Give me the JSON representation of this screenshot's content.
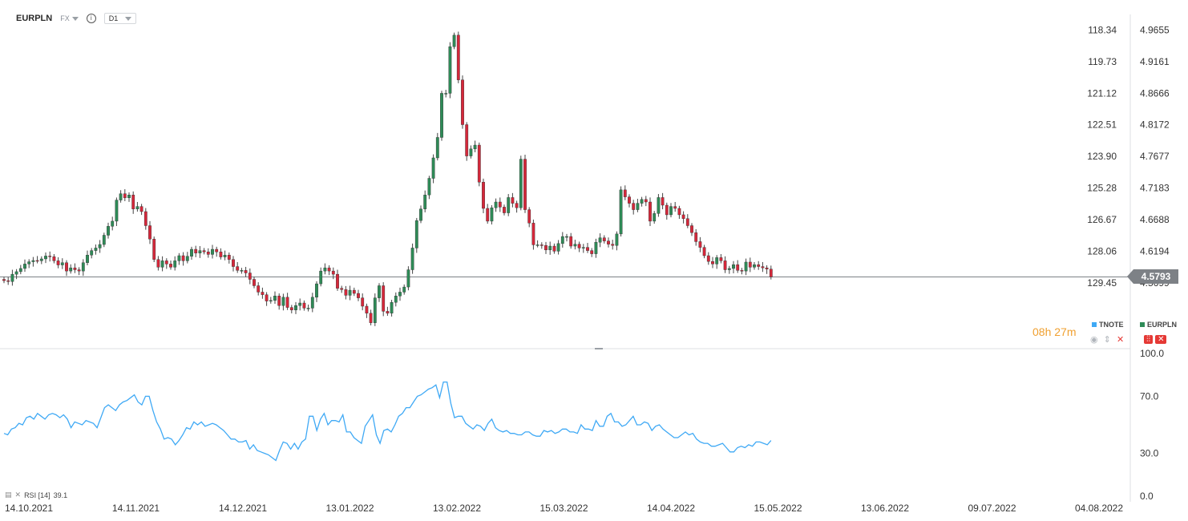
{
  "header": {
    "symbol": "EURPLN",
    "exchange": "FX",
    "timeframe": "D1"
  },
  "timer": "08h 27m",
  "legend": {
    "items": [
      {
        "label": "TNOTE",
        "color": "#3fa9f5"
      },
      {
        "label": "EURPLN",
        "color": "#2e8b57"
      }
    ]
  },
  "rsi_label": "RSI [14]",
  "rsi_value": "39.1",
  "last_price_label": "4.5793",
  "chart_data": [
    {
      "type": "candlestick",
      "title": "EURPLN",
      "current_price": 4.5793,
      "right_axis_ticks": [
        "4.9655",
        "4.9161",
        "4.8666",
        "4.8172",
        "4.7677",
        "4.7183",
        "4.6688",
        "4.6194",
        "4.5699"
      ],
      "left_axis_ticks": [
        "118.34",
        "119.73",
        "121.12",
        "122.51",
        "123.90",
        "125.28",
        "126.67",
        "128.06",
        "129.45"
      ],
      "ylim": [
        4.4708,
        5.0125
      ],
      "x_tick_labels": [
        "14.10.2021",
        "14.11.2021",
        "14.12.2021",
        "13.01.2022",
        "13.02.2022",
        "15.03.2022",
        "14.04.2022",
        "15.05.2022",
        "13.06.2022",
        "09.07.2022",
        "04.08.2022"
      ],
      "series": [
        {
          "name": "EURPLN",
          "up_color": "#2e8b57",
          "down_color": "#d6273a",
          "close": [
            4.5735,
            4.572,
            4.5835,
            4.5875,
            4.5925,
            4.5995,
            4.603,
            4.605,
            4.6045,
            4.6075,
            4.612,
            4.611,
            4.6045,
            4.598,
            4.6015,
            4.5885,
            4.5935,
            4.5905,
            4.5885,
            4.6015,
            4.6135,
            4.6205,
            4.6245,
            4.63,
            4.6445,
            4.6585,
            4.6665,
            4.6995,
            4.7095,
            4.703,
            4.7075,
            4.6855,
            4.6895,
            4.6815,
            4.6595,
            4.6385,
            4.6065,
            4.5945,
            4.6045,
            4.5995,
            4.5945,
            4.6045,
            4.6125,
            4.6045,
            4.6115,
            4.6225,
            4.6165,
            4.6205,
            4.6185,
            4.6145,
            4.6225,
            4.6185,
            4.6105,
            4.6135,
            4.6065,
            4.5955,
            4.5895,
            4.5895,
            4.5855,
            4.5755,
            4.5655,
            4.5555,
            4.5515,
            4.5415,
            4.5425,
            4.5495,
            4.5345,
            4.5475,
            4.5315,
            4.5275,
            4.5345,
            4.5385,
            4.5305,
            4.5305,
            4.5475,
            4.5685,
            4.5885,
            4.5935,
            4.5885,
            4.5835,
            4.5615,
            4.5595,
            4.5505,
            4.5585,
            4.5535,
            4.5465,
            4.5335,
            4.5225,
            4.5075,
            4.5465,
            4.5655,
            4.5255,
            4.5225,
            4.5395,
            4.5495,
            4.5555,
            4.5635,
            4.5905,
            4.6245,
            4.6675,
            4.6855,
            4.7075,
            4.7335,
            4.7655,
            4.7975,
            4.8665,
            4.8665,
            4.9395,
            4.9575,
            4.8875,
            4.8175,
            4.7685,
            4.7795,
            4.7855,
            4.7275,
            4.6865,
            4.6665,
            4.6875,
            4.6965,
            4.6885,
            4.6795,
            4.7035,
            4.6945,
            4.6875,
            4.7635,
            4.6845,
            4.6635,
            4.6295,
            4.6295,
            4.6285,
            4.6215,
            4.6275,
            4.6195,
            4.6315,
            4.6425,
            4.6425,
            4.6275,
            4.6305,
            4.6245,
            4.6255,
            4.6205,
            4.6155,
            4.6335,
            4.6405,
            4.6355,
            4.6305,
            4.6285,
            4.6465,
            4.7155,
            4.7045,
            4.6945,
            4.6845,
            4.6945,
            4.7005,
            4.6965,
            4.6665,
            4.6785,
            4.7035,
            4.6915,
            4.6765,
            4.6895,
            4.6865,
            4.6765,
            4.6705,
            4.6595,
            4.6485,
            4.6345,
            4.6255,
            4.6125,
            4.6035,
            4.5995,
            4.6095,
            4.6045,
            4.5905,
            4.5925,
            4.5985,
            4.5895,
            4.5885,
            4.6025,
            4.5945,
            4.5985,
            4.5955,
            4.5935,
            4.5915,
            4.5793
          ]
        },
        {
          "name": "TNOTE",
          "color": "#3fa9f5"
        }
      ]
    },
    {
      "type": "line",
      "title": "RSI [14]",
      "ylim": [
        0,
        100
      ],
      "y_ticks": [
        "100.0",
        "70.0",
        "30.0",
        "0.0"
      ],
      "series": [
        {
          "name": "RSI [14]",
          "color": "#3fa9f5",
          "values": [
            44,
            43,
            47,
            48,
            51,
            50,
            55,
            56,
            54,
            58,
            56,
            54,
            57,
            58,
            57,
            55,
            57,
            54,
            48,
            52,
            51,
            50,
            53,
            52,
            51,
            48,
            55,
            62,
            64,
            62,
            60,
            64,
            66,
            67,
            69,
            71,
            66,
            64,
            70,
            70,
            60,
            52,
            47,
            40,
            41,
            40,
            36,
            39,
            43,
            48,
            47,
            52,
            50,
            52,
            49,
            50,
            51,
            50,
            48,
            46,
            43,
            40,
            40,
            38,
            38,
            39,
            33,
            36,
            32,
            31,
            30,
            29,
            27,
            25,
            32,
            38,
            37,
            33,
            37,
            33,
            38,
            40,
            56,
            56,
            46,
            54,
            58,
            50,
            53,
            53,
            52,
            57,
            45,
            45,
            41,
            39,
            37,
            49,
            53,
            57,
            43,
            37,
            46,
            47,
            45,
            50,
            56,
            58,
            62,
            62,
            66,
            70,
            71,
            73,
            75,
            76,
            78,
            69,
            80,
            80,
            65,
            55,
            56,
            56,
            51,
            49,
            47,
            50,
            49,
            46,
            51,
            54,
            48,
            46,
            45,
            46,
            44,
            44,
            43,
            43,
            45,
            45,
            43,
            42,
            42,
            46,
            45,
            46,
            44,
            45,
            47,
            47,
            45,
            45,
            44,
            50,
            47,
            47,
            46,
            53,
            49,
            49,
            56,
            58,
            52,
            52,
            49,
            50,
            53,
            56,
            50,
            50,
            52,
            51,
            46,
            49,
            50,
            47,
            45,
            43,
            41,
            41,
            43,
            45,
            43,
            44,
            40,
            38,
            37,
            37,
            35,
            35,
            36,
            37,
            34,
            31,
            31,
            34,
            35,
            34,
            36,
            35,
            38,
            38,
            37,
            36,
            39
          ]
        }
      ]
    }
  ]
}
